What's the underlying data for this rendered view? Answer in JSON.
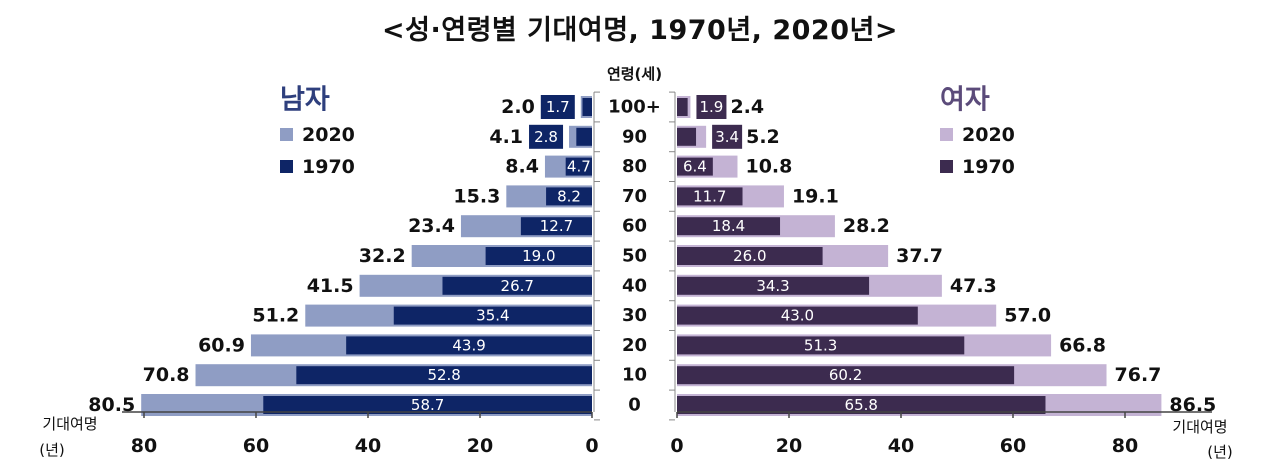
{
  "title": "<성·연령별 기대여명, 1970년, 2020년>",
  "age_axis_label": "연령(세)",
  "x_axis_label_left": [
    "기대여명",
    "(년)"
  ],
  "x_axis_label_right": [
    "기대여명",
    "(년)"
  ],
  "colors": {
    "male_2020": "#8f9dc4",
    "male_1970": "#0e2566",
    "female_2020": "#c4b3d4",
    "female_1970": "#3c2b4f",
    "male_title": "#2e3f7d",
    "female_title": "#5b4b7a"
  },
  "chart_data": {
    "type": "bar",
    "orientation": "horizontal-pyramid",
    "title": "<성·연령별 기대여명, 1970년, 2020년>",
    "categories": [
      "100+",
      "90",
      "80",
      "70",
      "60",
      "50",
      "40",
      "30",
      "20",
      "10",
      "0"
    ],
    "xlim": [
      0,
      80
    ],
    "ticks": [
      0,
      20,
      40,
      60,
      80
    ],
    "panels": [
      {
        "name": "남자",
        "side": "left",
        "series": [
          {
            "name": "2020",
            "values": [
              2.0,
              4.1,
              8.4,
              15.3,
              23.4,
              32.2,
              41.5,
              51.2,
              60.9,
              70.8,
              80.5
            ]
          },
          {
            "name": "1970",
            "values": [
              1.7,
              2.8,
              4.7,
              8.2,
              12.7,
              19.0,
              26.7,
              35.4,
              43.9,
              52.8,
              58.7
            ]
          }
        ]
      },
      {
        "name": "여자",
        "side": "right",
        "series": [
          {
            "name": "2020",
            "values": [
              2.4,
              5.2,
              10.8,
              19.1,
              28.2,
              37.7,
              47.3,
              57.0,
              66.8,
              76.7,
              86.5
            ]
          },
          {
            "name": "1970",
            "values": [
              1.9,
              3.4,
              6.4,
              11.7,
              18.4,
              26.0,
              34.3,
              43.0,
              51.3,
              60.2,
              65.8
            ]
          }
        ]
      }
    ]
  }
}
